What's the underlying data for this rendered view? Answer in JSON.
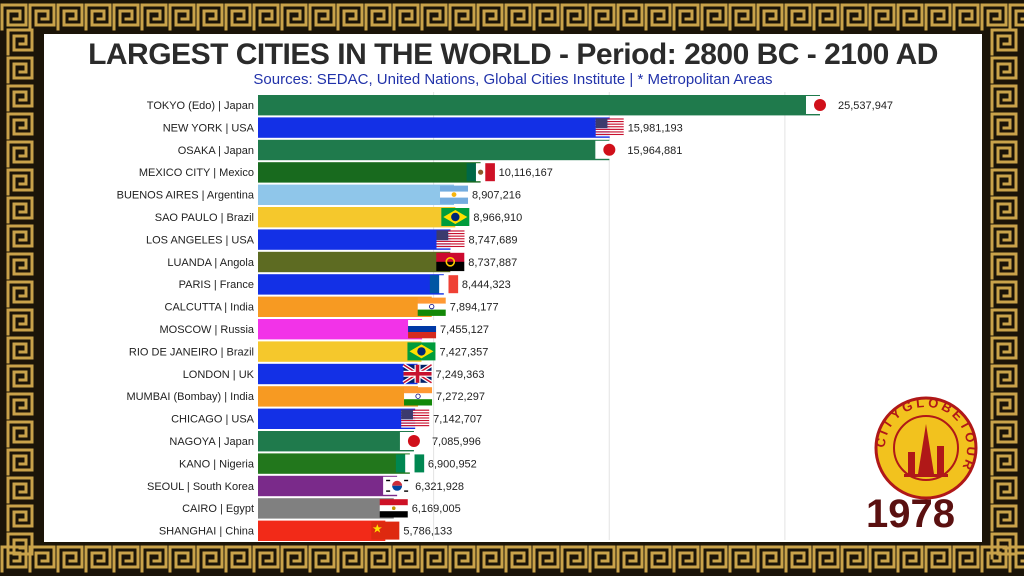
{
  "title": "LARGEST CITIES IN THE WORLD - Period: 2800 BC - 2100 AD",
  "subtitle": "Sources: SEDAC, United Nations, Global Cities Institute | * Metropolitan Areas",
  "year": "1978",
  "logo_text": "CITYGLOBETOUR",
  "colors": {
    "frame": "#1b1408",
    "meander": "#c9a24a",
    "title": "#2b2b2b",
    "subtitle": "#2233aa",
    "year": "#5a1010",
    "logo_ring": "#b01818",
    "logo_fill": "#f2c21e"
  },
  "chart_data": {
    "type": "bar",
    "orientation": "horizontal",
    "xlim": [
      0,
      25537947
    ],
    "grid": true,
    "categories": [
      "TOKYO (Edo) | Japan",
      "NEW YORK | USA",
      "OSAKA | Japan",
      "MEXICO CITY | Mexico",
      "BUENOS AIRES | Argentina",
      "SAO PAULO | Brazil",
      "LOS ANGELES | USA",
      "LUANDA | Angola",
      "PARIS | France",
      "CALCUTTA | India",
      "MOSCOW | Russia",
      "RIO DE JANEIRO | Brazil",
      "LONDON | UK",
      "MUMBAI (Bombay) | India",
      "CHICAGO | USA",
      "NAGOYA | Japan",
      "KANO | Nigeria",
      "SEOUL | South Korea",
      "CAIRO | Egypt",
      "SHANGHAI | China"
    ],
    "values": [
      25537947,
      15981193,
      15964881,
      10116167,
      8907216,
      8966910,
      8747689,
      8737887,
      8444323,
      7894177,
      7455127,
      7427357,
      7249363,
      7272297,
      7142707,
      7085996,
      6900952,
      6321928,
      6169005,
      5786133
    ],
    "value_labels": [
      "25,537,947",
      "15,981,193",
      "15,964,881",
      "10,116,167",
      "8,907,216",
      "8,966,910",
      "8,747,689",
      "8,737,887",
      "8,444,323",
      "7,894,177",
      "7,455,127",
      "7,427,357",
      "7,249,363",
      "7,272,297",
      "7,142,707",
      "7,085,996",
      "6,900,952",
      "6,321,928",
      "6,169,005",
      "5,786,133"
    ],
    "bar_colors": [
      "#1f7a4c",
      "#1330e6",
      "#1f7a4c",
      "#186a1e",
      "#8fc6ea",
      "#f5c82c",
      "#1330e6",
      "#5d6b22",
      "#1330e6",
      "#f79a22",
      "#f233e8",
      "#f5c82c",
      "#1330e6",
      "#f79a22",
      "#1330e6",
      "#1f7a4c",
      "#22771c",
      "#7a2a8a",
      "#808080",
      "#f22a18"
    ],
    "flags": [
      "japan-flag",
      "usa-flag",
      "japan-flag",
      "mexico-flag",
      "argentina-flag",
      "brazil-flag",
      "usa-flag",
      "angola-flag",
      "france-flag",
      "india-flag",
      "russia-flag",
      "brazil-flag",
      "uk-flag",
      "india-flag",
      "usa-flag",
      "japan-flag",
      "nigeria-flag",
      "south-korea-flag",
      "egypt-flag",
      "china-flag"
    ]
  }
}
